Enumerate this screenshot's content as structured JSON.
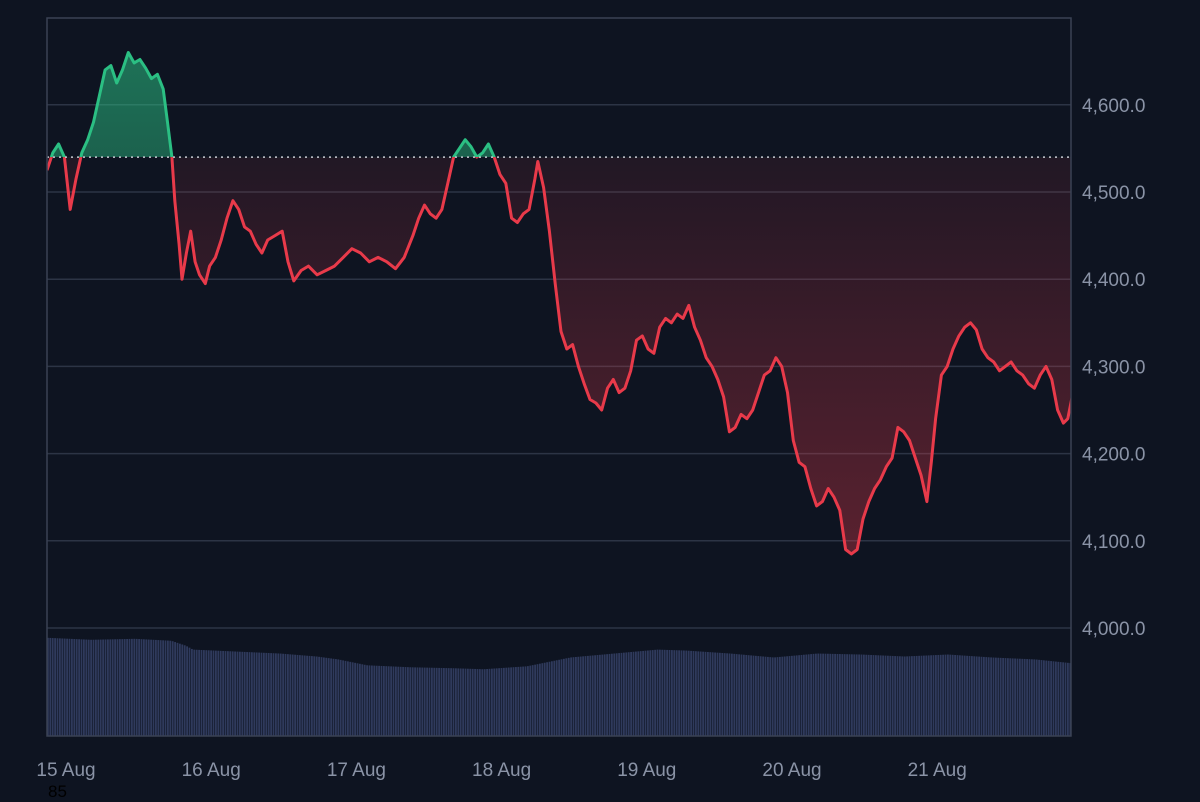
{
  "chart_data": {
    "type": "area",
    "baseline": 4540,
    "ylim": [
      3880,
      4700
    ],
    "y_ticks": [
      {
        "value": 4000,
        "label": "4,000.0"
      },
      {
        "value": 4100,
        "label": "4,100.0"
      },
      {
        "value": 4200,
        "label": "4,200.0"
      },
      {
        "value": 4300,
        "label": "4,300.0"
      },
      {
        "value": 4400,
        "label": "4,400.0"
      },
      {
        "value": 4500,
        "label": "4,500.0"
      },
      {
        "value": 4600,
        "label": "4,600.0"
      }
    ],
    "x_ticks": [
      {
        "day": 0,
        "label": "15 Aug"
      },
      {
        "day": 1,
        "label": "16 Aug"
      },
      {
        "day": 2,
        "label": "17 Aug"
      },
      {
        "day": 3,
        "label": "18 Aug"
      },
      {
        "day": 4,
        "label": "19 Aug"
      },
      {
        "day": 5,
        "label": "20 Aug"
      },
      {
        "day": 6,
        "label": "21 Aug"
      }
    ],
    "x_range_days": [
      0,
      7.06
    ],
    "price": [
      [
        0.0,
        4525
      ],
      [
        0.04,
        4545
      ],
      [
        0.08,
        4555
      ],
      [
        0.12,
        4540
      ],
      [
        0.16,
        4480
      ],
      [
        0.2,
        4515
      ],
      [
        0.24,
        4545
      ],
      [
        0.28,
        4560
      ],
      [
        0.32,
        4580
      ],
      [
        0.36,
        4610
      ],
      [
        0.4,
        4640
      ],
      [
        0.44,
        4645
      ],
      [
        0.48,
        4625
      ],
      [
        0.52,
        4640
      ],
      [
        0.56,
        4660
      ],
      [
        0.6,
        4648
      ],
      [
        0.64,
        4652
      ],
      [
        0.68,
        4642
      ],
      [
        0.72,
        4630
      ],
      [
        0.76,
        4635
      ],
      [
        0.8,
        4618
      ],
      [
        0.83,
        4580
      ],
      [
        0.86,
        4540
      ],
      [
        0.88,
        4490
      ],
      [
        0.91,
        4440
      ],
      [
        0.93,
        4400
      ],
      [
        0.96,
        4430
      ],
      [
        0.99,
        4455
      ],
      [
        1.02,
        4420
      ],
      [
        1.05,
        4405
      ],
      [
        1.09,
        4395
      ],
      [
        1.12,
        4415
      ],
      [
        1.16,
        4425
      ],
      [
        1.2,
        4445
      ],
      [
        1.24,
        4470
      ],
      [
        1.28,
        4490
      ],
      [
        1.32,
        4480
      ],
      [
        1.36,
        4460
      ],
      [
        1.4,
        4455
      ],
      [
        1.44,
        4440
      ],
      [
        1.48,
        4430
      ],
      [
        1.52,
        4445
      ],
      [
        1.57,
        4450
      ],
      [
        1.62,
        4455
      ],
      [
        1.66,
        4420
      ],
      [
        1.7,
        4398
      ],
      [
        1.75,
        4410
      ],
      [
        1.8,
        4415
      ],
      [
        1.86,
        4405
      ],
      [
        1.92,
        4410
      ],
      [
        1.98,
        4415
      ],
      [
        2.04,
        4425
      ],
      [
        2.1,
        4435
      ],
      [
        2.16,
        4430
      ],
      [
        2.22,
        4420
      ],
      [
        2.28,
        4425
      ],
      [
        2.34,
        4420
      ],
      [
        2.4,
        4412
      ],
      [
        2.46,
        4425
      ],
      [
        2.52,
        4450
      ],
      [
        2.56,
        4470
      ],
      [
        2.6,
        4485
      ],
      [
        2.64,
        4475
      ],
      [
        2.68,
        4470
      ],
      [
        2.72,
        4480
      ],
      [
        2.76,
        4510
      ],
      [
        2.8,
        4540
      ],
      [
        2.84,
        4550
      ],
      [
        2.88,
        4560
      ],
      [
        2.92,
        4552
      ],
      [
        2.96,
        4540
      ],
      [
        3.0,
        4545
      ],
      [
        3.04,
        4555
      ],
      [
        3.08,
        4540
      ],
      [
        3.12,
        4520
      ],
      [
        3.16,
        4510
      ],
      [
        3.2,
        4470
      ],
      [
        3.24,
        4465
      ],
      [
        3.28,
        4475
      ],
      [
        3.32,
        4480
      ],
      [
        3.36,
        4515
      ],
      [
        3.38,
        4535
      ],
      [
        3.42,
        4505
      ],
      [
        3.46,
        4455
      ],
      [
        3.5,
        4395
      ],
      [
        3.54,
        4340
      ],
      [
        3.58,
        4320
      ],
      [
        3.62,
        4325
      ],
      [
        3.66,
        4300
      ],
      [
        3.7,
        4280
      ],
      [
        3.74,
        4262
      ],
      [
        3.78,
        4258
      ],
      [
        3.82,
        4250
      ],
      [
        3.86,
        4275
      ],
      [
        3.9,
        4285
      ],
      [
        3.94,
        4270
      ],
      [
        3.98,
        4275
      ],
      [
        4.02,
        4295
      ],
      [
        4.06,
        4330
      ],
      [
        4.1,
        4335
      ],
      [
        4.14,
        4320
      ],
      [
        4.18,
        4315
      ],
      [
        4.22,
        4345
      ],
      [
        4.26,
        4355
      ],
      [
        4.3,
        4350
      ],
      [
        4.34,
        4360
      ],
      [
        4.38,
        4355
      ],
      [
        4.42,
        4370
      ],
      [
        4.46,
        4345
      ],
      [
        4.5,
        4330
      ],
      [
        4.54,
        4310
      ],
      [
        4.58,
        4300
      ],
      [
        4.62,
        4285
      ],
      [
        4.66,
        4265
      ],
      [
        4.7,
        4225
      ],
      [
        4.74,
        4230
      ],
      [
        4.78,
        4245
      ],
      [
        4.82,
        4240
      ],
      [
        4.86,
        4250
      ],
      [
        4.9,
        4270
      ],
      [
        4.94,
        4290
      ],
      [
        4.98,
        4295
      ],
      [
        5.02,
        4310
      ],
      [
        5.06,
        4300
      ],
      [
        5.1,
        4270
      ],
      [
        5.14,
        4215
      ],
      [
        5.18,
        4190
      ],
      [
        5.22,
        4185
      ],
      [
        5.26,
        4160
      ],
      [
        5.3,
        4140
      ],
      [
        5.34,
        4145
      ],
      [
        5.38,
        4160
      ],
      [
        5.42,
        4150
      ],
      [
        5.46,
        4135
      ],
      [
        5.5,
        4090
      ],
      [
        5.54,
        4085
      ],
      [
        5.58,
        4090
      ],
      [
        5.62,
        4125
      ],
      [
        5.66,
        4145
      ],
      [
        5.7,
        4160
      ],
      [
        5.74,
        4170
      ],
      [
        5.78,
        4185
      ],
      [
        5.82,
        4195
      ],
      [
        5.86,
        4230
      ],
      [
        5.9,
        4225
      ],
      [
        5.94,
        4215
      ],
      [
        5.98,
        4195
      ],
      [
        6.02,
        4175
      ],
      [
        6.06,
        4145
      ],
      [
        6.09,
        4190
      ],
      [
        6.12,
        4240
      ],
      [
        6.16,
        4290
      ],
      [
        6.2,
        4300
      ],
      [
        6.24,
        4320
      ],
      [
        6.28,
        4335
      ],
      [
        6.32,
        4345
      ],
      [
        6.36,
        4350
      ],
      [
        6.4,
        4342
      ],
      [
        6.44,
        4320
      ],
      [
        6.48,
        4310
      ],
      [
        6.52,
        4305
      ],
      [
        6.56,
        4295
      ],
      [
        6.6,
        4300
      ],
      [
        6.64,
        4305
      ],
      [
        6.68,
        4295
      ],
      [
        6.72,
        4290
      ],
      [
        6.76,
        4280
      ],
      [
        6.8,
        4275
      ],
      [
        6.84,
        4290
      ],
      [
        6.88,
        4300
      ],
      [
        6.92,
        4285
      ],
      [
        6.96,
        4250
      ],
      [
        7.0,
        4235
      ],
      [
        7.03,
        4240
      ],
      [
        7.06,
        4265
      ]
    ],
    "volume_ylim": [
      0,
      110
    ],
    "volume": [
      [
        0.0,
        100
      ],
      [
        0.3,
        98
      ],
      [
        0.6,
        99
      ],
      [
        0.85,
        97
      ],
      [
        0.95,
        92
      ],
      [
        1.0,
        88
      ],
      [
        1.3,
        86
      ],
      [
        1.6,
        84
      ],
      [
        1.85,
        81
      ],
      [
        2.0,
        78
      ],
      [
        2.2,
        72
      ],
      [
        2.5,
        70
      ],
      [
        2.8,
        69
      ],
      [
        3.0,
        68
      ],
      [
        3.3,
        71
      ],
      [
        3.6,
        80
      ],
      [
        3.9,
        84
      ],
      [
        4.2,
        88
      ],
      [
        4.4,
        87
      ],
      [
        4.7,
        84
      ],
      [
        5.0,
        80
      ],
      [
        5.3,
        84
      ],
      [
        5.6,
        83
      ],
      [
        5.9,
        81
      ],
      [
        6.2,
        83
      ],
      [
        6.5,
        80
      ],
      [
        6.8,
        78
      ],
      [
        7.06,
        74
      ]
    ],
    "colors": {
      "background": "#0e1421",
      "grid": "#2c3445",
      "frame": "#3a4254",
      "up_line": "#2bbf83",
      "down_line": "#e83a4a",
      "baseline_dots": "#c8ccd4",
      "volume": "#2f3a5c",
      "axis_text": "#8a93a6"
    }
  },
  "stray_label": "85"
}
